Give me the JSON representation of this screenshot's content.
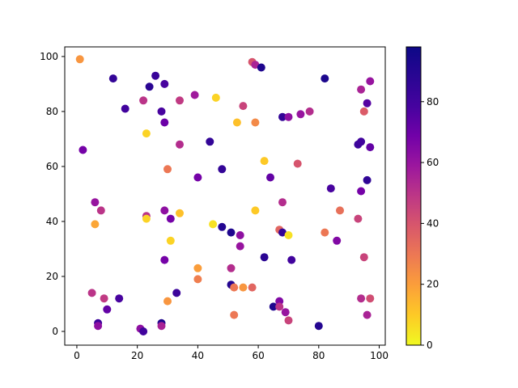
{
  "chart_data": {
    "type": "scatter",
    "title": "",
    "xlabel": "",
    "ylabel": "",
    "xlim": [
      -4,
      102
    ],
    "ylim": [
      -5,
      103.5
    ],
    "x_ticks": [
      0,
      20,
      40,
      60,
      80,
      100
    ],
    "y_ticks": [
      0,
      20,
      40,
      60,
      80,
      100
    ],
    "colorbar": {
      "colormap": "plasma",
      "range": [
        0,
        98
      ],
      "ticks": [
        0,
        20,
        40,
        60,
        80
      ]
    },
    "points": [
      {
        "x": 1,
        "y": 99,
        "c": 22
      },
      {
        "x": 12,
        "y": 92,
        "c": 85
      },
      {
        "x": 24,
        "y": 89,
        "c": 88
      },
      {
        "x": 26,
        "y": 93,
        "c": 83
      },
      {
        "x": 29,
        "y": 90,
        "c": 78
      },
      {
        "x": 16,
        "y": 81,
        "c": 80
      },
      {
        "x": 22,
        "y": 84,
        "c": 50
      },
      {
        "x": 28,
        "y": 80,
        "c": 78
      },
      {
        "x": 29,
        "y": 76,
        "c": 70
      },
      {
        "x": 23,
        "y": 72,
        "c": 8
      },
      {
        "x": 34,
        "y": 84,
        "c": 48
      },
      {
        "x": 39,
        "y": 86,
        "c": 58
      },
      {
        "x": 46,
        "y": 85,
        "c": 8
      },
      {
        "x": 55,
        "y": 82,
        "c": 45
      },
      {
        "x": 53,
        "y": 76,
        "c": 12
      },
      {
        "x": 59,
        "y": 76,
        "c": 25
      },
      {
        "x": 58,
        "y": 98,
        "c": 40
      },
      {
        "x": 59,
        "y": 97,
        "c": 55
      },
      {
        "x": 61,
        "y": 96,
        "c": 92
      },
      {
        "x": 82,
        "y": 92,
        "c": 93
      },
      {
        "x": 94,
        "y": 88,
        "c": 55
      },
      {
        "x": 97,
        "y": 91,
        "c": 60
      },
      {
        "x": 96,
        "y": 83,
        "c": 75
      },
      {
        "x": 95,
        "y": 80,
        "c": 38
      },
      {
        "x": 68,
        "y": 78,
        "c": 85
      },
      {
        "x": 70,
        "y": 78,
        "c": 62
      },
      {
        "x": 74,
        "y": 79,
        "c": 60
      },
      {
        "x": 77,
        "y": 80,
        "c": 52
      },
      {
        "x": 2,
        "y": 66,
        "c": 68
      },
      {
        "x": 34,
        "y": 68,
        "c": 52
      },
      {
        "x": 44,
        "y": 69,
        "c": 85
      },
      {
        "x": 48,
        "y": 59,
        "c": 85
      },
      {
        "x": 62,
        "y": 62,
        "c": 10
      },
      {
        "x": 73,
        "y": 61,
        "c": 40
      },
      {
        "x": 93,
        "y": 68,
        "c": 82
      },
      {
        "x": 94,
        "y": 69,
        "c": 80
      },
      {
        "x": 97,
        "y": 67,
        "c": 72
      },
      {
        "x": 96,
        "y": 55,
        "c": 86
      },
      {
        "x": 30,
        "y": 59,
        "c": 30
      },
      {
        "x": 40,
        "y": 56,
        "c": 68
      },
      {
        "x": 64,
        "y": 56,
        "c": 72
      },
      {
        "x": 84,
        "y": 52,
        "c": 78
      },
      {
        "x": 94,
        "y": 51,
        "c": 68
      },
      {
        "x": 6,
        "y": 47,
        "c": 60
      },
      {
        "x": 8,
        "y": 44,
        "c": 50
      },
      {
        "x": 6,
        "y": 39,
        "c": 18
      },
      {
        "x": 23,
        "y": 42,
        "c": 50
      },
      {
        "x": 23,
        "y": 41,
        "c": 8
      },
      {
        "x": 29,
        "y": 44,
        "c": 62
      },
      {
        "x": 31,
        "y": 41,
        "c": 68
      },
      {
        "x": 34,
        "y": 43,
        "c": 12
      },
      {
        "x": 45,
        "y": 39,
        "c": 5
      },
      {
        "x": 48,
        "y": 38,
        "c": 90
      },
      {
        "x": 51,
        "y": 36,
        "c": 92
      },
      {
        "x": 54,
        "y": 35,
        "c": 62
      },
      {
        "x": 59,
        "y": 44,
        "c": 10
      },
      {
        "x": 68,
        "y": 47,
        "c": 52
      },
      {
        "x": 67,
        "y": 37,
        "c": 35
      },
      {
        "x": 68,
        "y": 36,
        "c": 85
      },
      {
        "x": 70,
        "y": 35,
        "c": 5
      },
      {
        "x": 82,
        "y": 36,
        "c": 30
      },
      {
        "x": 87,
        "y": 44,
        "c": 32
      },
      {
        "x": 93,
        "y": 41,
        "c": 45
      },
      {
        "x": 86,
        "y": 33,
        "c": 65
      },
      {
        "x": 95,
        "y": 27,
        "c": 45
      },
      {
        "x": 31,
        "y": 33,
        "c": 8
      },
      {
        "x": 29,
        "y": 26,
        "c": 68
      },
      {
        "x": 54,
        "y": 31,
        "c": 60
      },
      {
        "x": 62,
        "y": 27,
        "c": 88
      },
      {
        "x": 71,
        "y": 26,
        "c": 80
      },
      {
        "x": 51,
        "y": 23,
        "c": 52
      },
      {
        "x": 40,
        "y": 23,
        "c": 20
      },
      {
        "x": 40,
        "y": 19,
        "c": 28
      },
      {
        "x": 5,
        "y": 14,
        "c": 50
      },
      {
        "x": 9,
        "y": 12,
        "c": 48
      },
      {
        "x": 14,
        "y": 12,
        "c": 78
      },
      {
        "x": 10,
        "y": 8,
        "c": 72
      },
      {
        "x": 7,
        "y": 3,
        "c": 82
      },
      {
        "x": 7,
        "y": 2,
        "c": 62
      },
      {
        "x": 21,
        "y": 1,
        "c": 62
      },
      {
        "x": 22,
        "y": 0,
        "c": 80
      },
      {
        "x": 28,
        "y": 3,
        "c": 92
      },
      {
        "x": 28,
        "y": 2,
        "c": 55
      },
      {
        "x": 33,
        "y": 14,
        "c": 82
      },
      {
        "x": 30,
        "y": 11,
        "c": 22
      },
      {
        "x": 51,
        "y": 17,
        "c": 90
      },
      {
        "x": 52,
        "y": 16,
        "c": 30
      },
      {
        "x": 55,
        "y": 16,
        "c": 22
      },
      {
        "x": 58,
        "y": 16,
        "c": 35
      },
      {
        "x": 52,
        "y": 6,
        "c": 30
      },
      {
        "x": 65,
        "y": 9,
        "c": 92
      },
      {
        "x": 67,
        "y": 11,
        "c": 65
      },
      {
        "x": 67,
        "y": 9,
        "c": 50
      },
      {
        "x": 69,
        "y": 7,
        "c": 60
      },
      {
        "x": 70,
        "y": 4,
        "c": 45
      },
      {
        "x": 80,
        "y": 2,
        "c": 90
      },
      {
        "x": 94,
        "y": 12,
        "c": 52
      },
      {
        "x": 97,
        "y": 12,
        "c": 42
      },
      {
        "x": 96,
        "y": 6,
        "c": 55
      }
    ]
  }
}
